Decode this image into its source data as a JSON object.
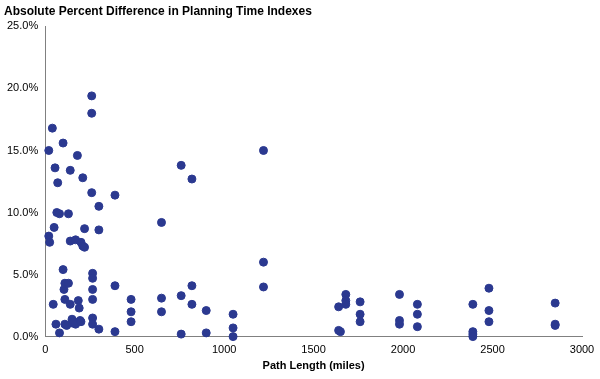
{
  "chart_data": {
    "type": "scatter",
    "title": "Absolute Percent Difference in Planning Time Indexes",
    "x_label": "Path Length (miles)",
    "x": [
      20,
      20,
      25,
      40,
      45,
      50,
      55,
      60,
      65,
      70,
      80,
      80,
      100,
      100,
      105,
      110,
      110,
      110,
      120,
      130,
      130,
      140,
      140,
      140,
      150,
      150,
      160,
      170,
      170,
      180,
      185,
      190,
      195,
      200,
      200,
      210,
      210,
      220,
      220,
      260,
      260,
      260,
      265,
      265,
      265,
      265,
      265,
      265,
      300,
      300,
      300,
      390,
      390,
      390,
      480,
      480,
      480,
      650,
      650,
      650,
      760,
      760,
      760,
      820,
      820,
      820,
      900,
      900,
      1050,
      1050,
      1050,
      1220,
      1220,
      1220,
      1640,
      1640,
      1650,
      1680,
      1680,
      1680,
      1760,
      1760,
      1760,
      1980,
      1980,
      1980,
      2080,
      2080,
      2080,
      2390,
      2390,
      2390,
      2390,
      2480,
      2480,
      2480,
      2850,
      2850,
      2850
    ],
    "values": [
      15.0,
      8.1,
      7.6,
      16.8,
      2.6,
      8.8,
      13.6,
      1.0,
      10.0,
      12.4,
      9.9,
      0.3,
      15.6,
      5.4,
      3.8,
      4.3,
      3.0,
      1.0,
      0.9,
      4.3,
      9.9,
      13.4,
      7.7,
      2.6,
      1.1,
      1.4,
      1.2,
      7.8,
      1.0,
      14.6,
      2.9,
      2.3,
      1.3,
      7.6,
      1.2,
      7.3,
      12.8,
      8.7,
      7.2,
      19.4,
      18.0,
      11.6,
      5.1,
      4.7,
      3.8,
      3.0,
      1.5,
      1.0,
      8.6,
      10.5,
      0.6,
      11.4,
      4.1,
      0.4,
      3.0,
      2.0,
      1.2,
      9.2,
      3.1,
      2.0,
      13.8,
      3.3,
      0.2,
      12.7,
      4.1,
      2.6,
      2.1,
      0.3,
      1.8,
      0.7,
      0.0,
      15.0,
      6.0,
      4.0,
      2.4,
      0.5,
      0.4,
      3.4,
      2.9,
      2.6,
      2.8,
      1.8,
      1.2,
      3.4,
      1.3,
      1.0,
      2.6,
      1.8,
      0.8,
      2.6,
      0.4,
      0.2,
      0.0,
      3.9,
      2.1,
      1.2,
      2.7,
      1.0,
      0.9
    ],
    "color": "#2b3990",
    "marker": "circle",
    "xlim": [
      0,
      3000
    ],
    "xticks": [
      0,
      500,
      1000,
      1500,
      2000,
      2500,
      3000
    ],
    "ylim": [
      0,
      25
    ],
    "yticks": [
      {
        "value": 0,
        "label": "0.0%"
      },
      {
        "value": 5,
        "label": "5.0%"
      },
      {
        "value": 10,
        "label": "10.0%"
      },
      {
        "value": 15,
        "label": "15.0%"
      },
      {
        "value": 20,
        "label": "20.0%"
      },
      {
        "value": 25,
        "label": "25.0%"
      }
    ],
    "grid": false
  }
}
